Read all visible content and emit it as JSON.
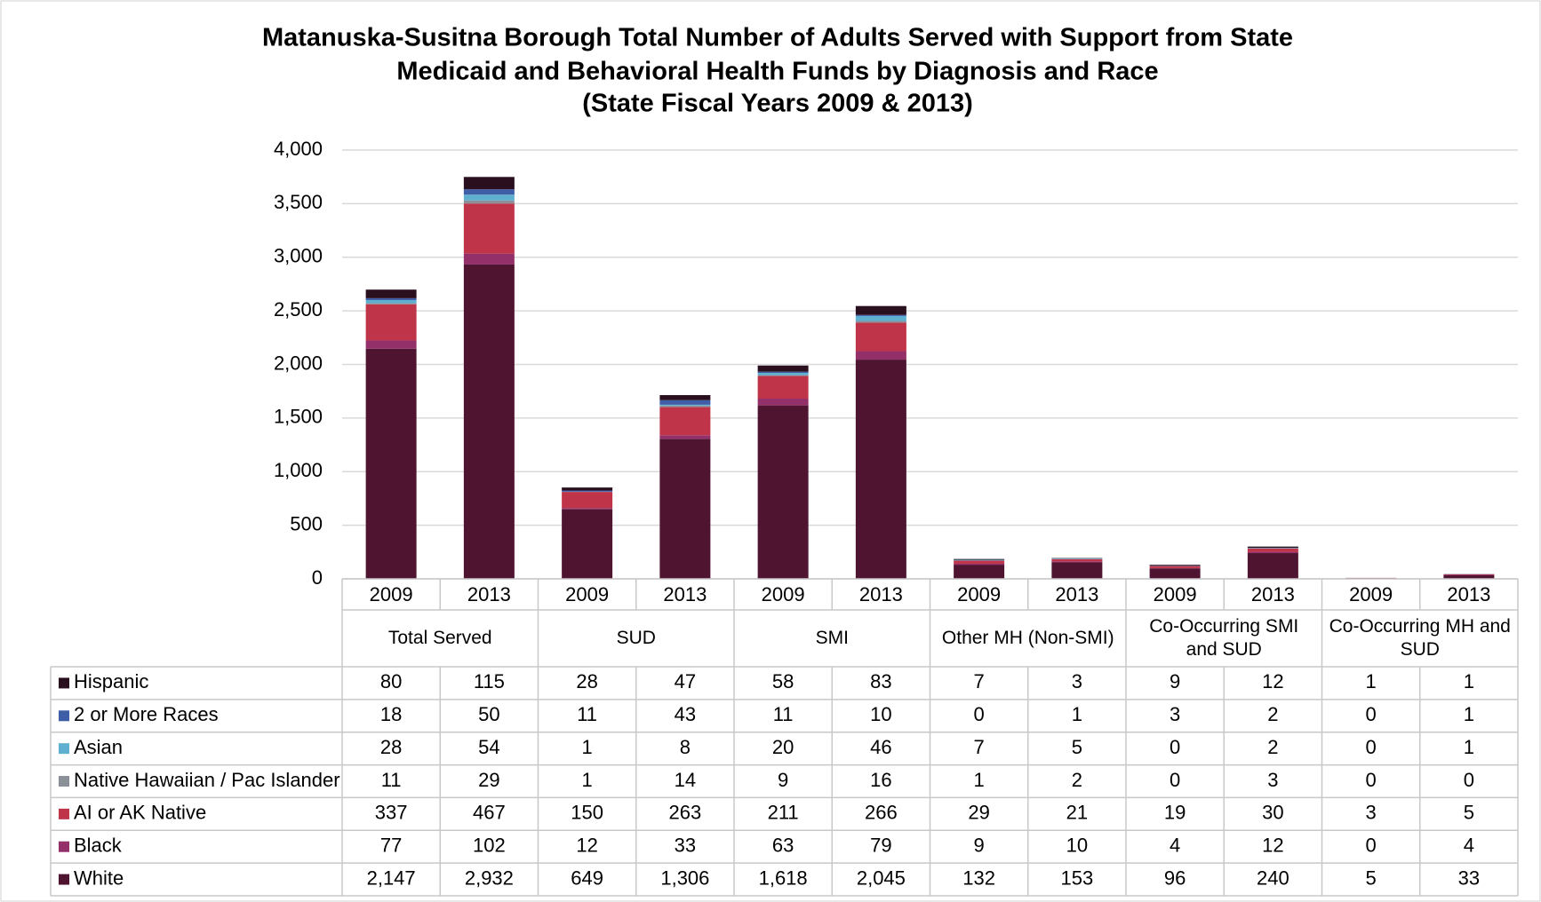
{
  "chart_data": {
    "type": "stacked_bar",
    "title": [
      "Matanuska-Susitna Borough Total Number of Adults Served with Support from State",
      "Medicaid and Behavioral Health Funds by Diagnosis and Race",
      "(State Fiscal Years 2009 & 2013)"
    ],
    "categories": [
      "2009",
      "2013",
      "2009",
      "2013",
      "2009",
      "2013",
      "2009",
      "2013",
      "2009",
      "2013",
      "2009",
      "2013"
    ],
    "category_groups": [
      "Total Served",
      "SUD",
      "SMI",
      "Other MH (Non-SMI)",
      "Co-Occurring SMI and SUD",
      "Co-Occurring MH and SUD"
    ],
    "series": [
      {
        "name": "Hispanic",
        "color": "#2a0f1f",
        "values": [
          80,
          115,
          28,
          47,
          58,
          83,
          7,
          3,
          9,
          12,
          1,
          1
        ]
      },
      {
        "name": "2 or More Races",
        "color": "#3f5ea8",
        "values": [
          18,
          50,
          11,
          43,
          11,
          10,
          0,
          1,
          3,
          2,
          0,
          1
        ]
      },
      {
        "name": "Asian",
        "color": "#5fb0d0",
        "values": [
          28,
          54,
          1,
          8,
          20,
          46,
          7,
          5,
          0,
          2,
          0,
          1
        ]
      },
      {
        "name": "Native Hawaiian / Pac Islander",
        "color": "#8c9099",
        "values": [
          11,
          29,
          1,
          14,
          9,
          16,
          1,
          2,
          0,
          3,
          0,
          0
        ]
      },
      {
        "name": "AI or AK Native",
        "color": "#c0344a",
        "values": [
          337,
          467,
          150,
          263,
          211,
          266,
          29,
          21,
          19,
          30,
          3,
          5
        ]
      },
      {
        "name": "Black",
        "color": "#93306a",
        "values": [
          77,
          102,
          12,
          33,
          63,
          79,
          9,
          10,
          4,
          12,
          0,
          4
        ]
      },
      {
        "name": "White",
        "color": "#4f1530",
        "values": [
          2147,
          2932,
          649,
          1306,
          1618,
          2045,
          132,
          153,
          96,
          240,
          5,
          33
        ],
        "value_labels": [
          "2,147",
          "2,932",
          "649",
          "1,306",
          "1,618",
          "2,045",
          "132",
          "153",
          "96",
          "240",
          "5",
          "33"
        ]
      }
    ],
    "ylim": [
      0,
      4000
    ],
    "yticks": [
      0,
      500,
      {
        "value": 1000,
        "label": "1,000"
      },
      {
        "value": 1500,
        "label": "1,500"
      },
      {
        "value": 2000,
        "label": "2,000"
      },
      {
        "value": 2500,
        "label": "2,500"
      },
      {
        "value": 3000,
        "label": "3,000"
      },
      {
        "value": 3500,
        "label": "3,500"
      },
      {
        "value": 4000,
        "label": "4,000"
      }
    ],
    "grid": true
  }
}
